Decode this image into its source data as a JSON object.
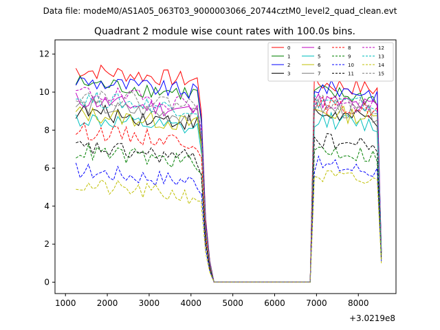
{
  "chart_data": {
    "type": "line",
    "suptitle": "Data file: modeM0/AS1A05_063T03_9000003066_20744cztM0_level2_quad_clean.evt",
    "title": "Quadrant 2 module wise count rates with 100.0s bins.",
    "xlabel": "",
    "ylabel": "",
    "x_offset_label": "+3.0219e8",
    "xlim": [
      750,
      8900
    ],
    "ylim": [
      -0.6,
      12.75
    ],
    "xticks": [
      1000,
      2000,
      3000,
      4000,
      5000,
      6000,
      7000,
      8000
    ],
    "xtick_labels": [
      "1000",
      "2000",
      "3000",
      "4000",
      "5000",
      "6000",
      "7000",
      "8000"
    ],
    "yticks": [
      0,
      2,
      4,
      6,
      8,
      10,
      12
    ],
    "ytick_labels": [
      "0",
      "2",
      "4",
      "6",
      "8",
      "10",
      "12"
    ],
    "legend": {
      "position": "top-right",
      "ncol": 4,
      "labels": [
        "0",
        "1",
        "2",
        "3",
        "4",
        "5",
        "6",
        "7",
        "8",
        "9",
        "10",
        "11",
        "12",
        "13",
        "14",
        "15"
      ]
    },
    "segments": [
      {
        "start": 1250,
        "step": 100,
        "count": 31
      },
      {
        "start": 4250,
        "step": 100,
        "count": 1
      },
      {
        "start": 4350,
        "step": 100,
        "count": 1
      },
      {
        "start": 4450,
        "step": 100,
        "count": 25
      },
      {
        "start": 6950,
        "step": 100,
        "count": 16
      },
      {
        "start": 8550,
        "step": 100,
        "count": 1
      }
    ],
    "series": [
      {
        "name": "0",
        "color": "#ff0000",
        "dash": "solid",
        "level1": 11.2,
        "level2": 10.5,
        "last": 1.6
      },
      {
        "name": "1",
        "color": "#008000",
        "dash": "solid",
        "level1": 10.5,
        "level2": 10.0,
        "last": 1.6
      },
      {
        "name": "2",
        "color": "#0000ff",
        "dash": "solid",
        "level1": 10.6,
        "level2": 10.3,
        "last": 1.7
      },
      {
        "name": "3",
        "color": "#000000",
        "dash": "solid",
        "level1": 9.0,
        "level2": 8.9,
        "last": 1.5
      },
      {
        "name": "4",
        "color": "#bf00bf",
        "dash": "solid",
        "level1": 9.6,
        "level2": 9.6,
        "last": 1.6
      },
      {
        "name": "5",
        "color": "#00bfbf",
        "dash": "solid",
        "level1": 8.6,
        "level2": 8.6,
        "last": 1.4
      },
      {
        "name": "6",
        "color": "#bfbf00",
        "dash": "solid",
        "level1": 8.9,
        "level2": 9.0,
        "last": 1.5
      },
      {
        "name": "7",
        "color": "#808080",
        "dash": "solid",
        "level1": 9.3,
        "level2": 9.2,
        "last": 1.5
      },
      {
        "name": "8",
        "color": "#ff0000",
        "dash": "dashed",
        "level1": 8.0,
        "level2": 9.4,
        "last": 1.4
      },
      {
        "name": "9",
        "color": "#008000",
        "dash": "dashed",
        "level1": 6.9,
        "level2": 7.0,
        "last": 1.2
      },
      {
        "name": "10",
        "color": "#0000ff",
        "dash": "dashed",
        "level1": 5.9,
        "level2": 6.2,
        "last": 1.1
      },
      {
        "name": "11",
        "color": "#000000",
        "dash": "dashed",
        "level1": 7.1,
        "level2": 7.5,
        "last": 1.2
      },
      {
        "name": "12",
        "color": "#bf00bf",
        "dash": "dashed",
        "level1": 10.0,
        "level2": 9.5,
        "last": 1.6
      },
      {
        "name": "13",
        "color": "#00bfbf",
        "dash": "dashed",
        "level1": 9.7,
        "level2": 9.6,
        "last": 1.5
      },
      {
        "name": "14",
        "color": "#bfbf00",
        "dash": "dashed",
        "level1": 5.1,
        "level2": 5.6,
        "last": 1.0
      },
      {
        "name": "15",
        "color": "#808080",
        "dash": "dashed",
        "level1": 9.9,
        "level2": 9.5,
        "last": 1.6
      }
    ],
    "transition_fractions": [
      0.8,
      0.3,
      0.1
    ]
  }
}
